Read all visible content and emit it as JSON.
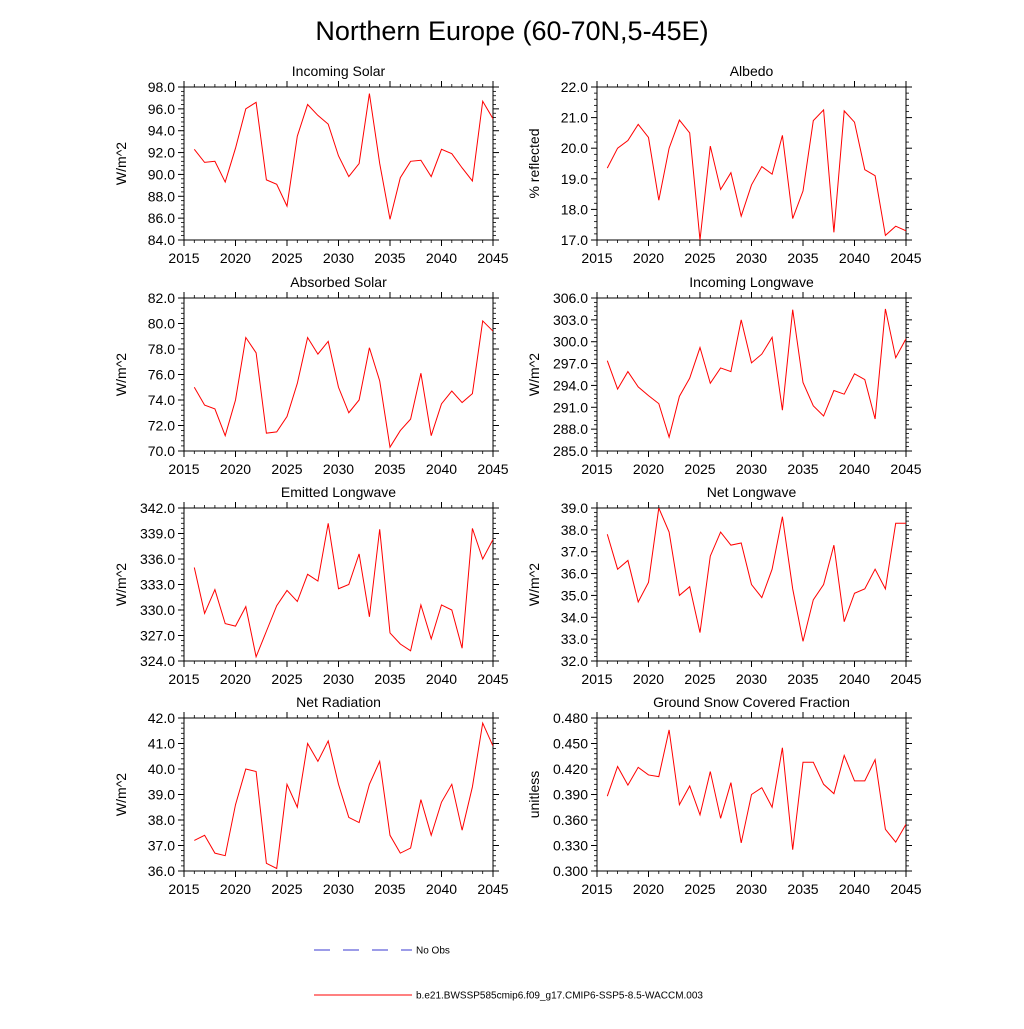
{
  "figure": {
    "title": "Northern Europe (60-70N,5-45E)",
    "legend": {
      "obs_label": "No Obs",
      "model_label": "b.e21.BWSSP585cmip6.f09_g17.CMIP6-SSP5-8.5-WACCM.003",
      "obs_color": "#3a3ad0",
      "model_color": "#ff0000"
    }
  },
  "chart_data": [
    {
      "type": "line",
      "title": "Incoming Solar",
      "xlabel": "",
      "ylabel": "W/m^2",
      "xlim": [
        2015,
        2045
      ],
      "ylim": [
        84.0,
        98.0
      ],
      "xticks": [
        "2015",
        "2020",
        "2025",
        "2030",
        "2035",
        "2040",
        "2045"
      ],
      "yticks": [
        "84.0",
        "86.0",
        "88.0",
        "90.0",
        "92.0",
        "94.0",
        "96.0",
        "98.0"
      ],
      "x": [
        2016,
        2017,
        2018,
        2019,
        2020,
        2021,
        2022,
        2023,
        2024,
        2025,
        2026,
        2027,
        2028,
        2029,
        2030,
        2031,
        2032,
        2033,
        2034,
        2035,
        2036,
        2037,
        2038,
        2039,
        2040,
        2041,
        2042,
        2043,
        2044,
        2045
      ],
      "series": [
        {
          "name": "b.e21.BWSSP585cmip6.f09_g17.CMIP6-SSP5-8.5-WACCM.003",
          "values": [
            92.3,
            91.1,
            91.2,
            89.3,
            92.4,
            96.0,
            96.6,
            89.5,
            89.1,
            87.1,
            93.5,
            96.4,
            95.4,
            94.6,
            91.7,
            89.8,
            91.0,
            97.4,
            91.0,
            85.9,
            89.7,
            91.2,
            91.3,
            89.8,
            92.3,
            91.9,
            90.6,
            89.4,
            96.7,
            95.1
          ]
        }
      ]
    },
    {
      "type": "line",
      "title": "Albedo",
      "xlabel": "",
      "ylabel": "% reflected",
      "xlim": [
        2015,
        2045
      ],
      "ylim": [
        17.0,
        22.0
      ],
      "xticks": [
        "2015",
        "2020",
        "2025",
        "2030",
        "2035",
        "2040",
        "2045"
      ],
      "yticks": [
        "17.0",
        "18.0",
        "19.0",
        "20.0",
        "21.0",
        "22.0"
      ],
      "x": [
        2016,
        2017,
        2018,
        2019,
        2020,
        2021,
        2022,
        2023,
        2024,
        2025,
        2026,
        2027,
        2028,
        2029,
        2030,
        2031,
        2032,
        2033,
        2034,
        2035,
        2036,
        2037,
        2038,
        2039,
        2040,
        2041,
        2042,
        2043,
        2044,
        2045
      ],
      "series": [
        {
          "name": "b.e21.BWSSP585cmip6.f09_g17.CMIP6-SSP5-8.5-WACCM.003",
          "values": [
            19.35,
            20.0,
            20.25,
            20.78,
            20.35,
            18.3,
            20.0,
            20.92,
            20.5,
            17.0,
            20.07,
            18.65,
            19.2,
            17.78,
            18.8,
            19.4,
            19.15,
            20.42,
            17.7,
            18.6,
            20.9,
            21.25,
            17.25,
            21.22,
            20.85,
            19.3,
            19.1,
            17.15,
            17.45,
            17.3
          ]
        }
      ]
    },
    {
      "type": "line",
      "title": "Absorbed Solar",
      "xlabel": "",
      "ylabel": "W/m^2",
      "xlim": [
        2015,
        2045
      ],
      "ylim": [
        70.0,
        82.0
      ],
      "xticks": [
        "2015",
        "2020",
        "2025",
        "2030",
        "2035",
        "2040",
        "2045"
      ],
      "yticks": [
        "70.0",
        "72.0",
        "74.0",
        "76.0",
        "78.0",
        "80.0",
        "82.0"
      ],
      "x": [
        2016,
        2017,
        2018,
        2019,
        2020,
        2021,
        2022,
        2023,
        2024,
        2025,
        2026,
        2027,
        2028,
        2029,
        2030,
        2031,
        2032,
        2033,
        2034,
        2035,
        2036,
        2037,
        2038,
        2039,
        2040,
        2041,
        2042,
        2043,
        2044,
        2045
      ],
      "series": [
        {
          "name": "b.e21.BWSSP585cmip6.f09_g17.CMIP6-SSP5-8.5-WACCM.003",
          "values": [
            75.0,
            73.6,
            73.3,
            71.2,
            74.0,
            78.9,
            77.7,
            71.4,
            71.5,
            72.7,
            75.3,
            78.9,
            77.6,
            78.6,
            75.0,
            73.0,
            74.0,
            78.1,
            75.5,
            70.3,
            71.6,
            72.5,
            76.1,
            71.2,
            73.7,
            74.7,
            73.8,
            74.5,
            80.2,
            79.4
          ]
        }
      ]
    },
    {
      "type": "line",
      "title": "Incoming Longwave",
      "xlabel": "",
      "ylabel": "W/m^2",
      "xlim": [
        2015,
        2045
      ],
      "ylim": [
        285.0,
        306.0
      ],
      "xticks": [
        "2015",
        "2020",
        "2025",
        "2030",
        "2035",
        "2040",
        "2045"
      ],
      "yticks": [
        "285.0",
        "288.0",
        "291.0",
        "294.0",
        "297.0",
        "300.0",
        "303.0",
        "306.0"
      ],
      "x": [
        2016,
        2017,
        2018,
        2019,
        2020,
        2021,
        2022,
        2023,
        2024,
        2025,
        2026,
        2027,
        2028,
        2029,
        2030,
        2031,
        2032,
        2033,
        2034,
        2035,
        2036,
        2037,
        2038,
        2039,
        2040,
        2041,
        2042,
        2043,
        2044,
        2045
      ],
      "series": [
        {
          "name": "b.e21.BWSSP585cmip6.f09_g17.CMIP6-SSP5-8.5-WACCM.003",
          "values": [
            297.4,
            293.5,
            295.9,
            293.8,
            292.6,
            291.5,
            286.9,
            292.5,
            295.0,
            299.2,
            294.3,
            296.4,
            295.9,
            303.0,
            297.1,
            298.3,
            300.6,
            290.6,
            304.4,
            294.4,
            291.2,
            289.8,
            293.3,
            292.8,
            295.6,
            294.8,
            289.4,
            304.5,
            297.8,
            300.4
          ]
        }
      ]
    },
    {
      "type": "line",
      "title": "Emitted Longwave",
      "xlabel": "",
      "ylabel": "W/m^2",
      "xlim": [
        2015,
        2045
      ],
      "ylim": [
        324.0,
        342.0
      ],
      "xticks": [
        "2015",
        "2020",
        "2025",
        "2030",
        "2035",
        "2040",
        "2045"
      ],
      "yticks": [
        "324.0",
        "327.0",
        "330.0",
        "333.0",
        "336.0",
        "339.0",
        "342.0"
      ],
      "x": [
        2016,
        2017,
        2018,
        2019,
        2020,
        2021,
        2022,
        2023,
        2024,
        2025,
        2026,
        2027,
        2028,
        2029,
        2030,
        2031,
        2032,
        2033,
        2034,
        2035,
        2036,
        2037,
        2038,
        2039,
        2040,
        2041,
        2042,
        2043,
        2044,
        2045
      ],
      "series": [
        {
          "name": "b.e21.BWSSP585cmip6.f09_g17.CMIP6-SSP5-8.5-WACCM.003",
          "values": [
            335.0,
            329.6,
            332.4,
            328.4,
            328.1,
            330.4,
            324.5,
            327.5,
            330.5,
            332.3,
            331.0,
            334.2,
            333.4,
            340.2,
            332.5,
            333.0,
            336.6,
            329.2,
            339.5,
            327.3,
            326.0,
            325.2,
            330.6,
            326.6,
            330.6,
            330.0,
            325.5,
            339.6,
            336.0,
            338.3
          ]
        }
      ]
    },
    {
      "type": "line",
      "title": "Net Longwave",
      "xlabel": "",
      "ylabel": "W/m^2",
      "xlim": [
        2015,
        2045
      ],
      "ylim": [
        32.0,
        39.0
      ],
      "xticks": [
        "2015",
        "2020",
        "2025",
        "2030",
        "2035",
        "2040",
        "2045"
      ],
      "yticks": [
        "32.0",
        "33.0",
        "34.0",
        "35.0",
        "36.0",
        "37.0",
        "38.0",
        "39.0"
      ],
      "x": [
        2016,
        2017,
        2018,
        2019,
        2020,
        2021,
        2022,
        2023,
        2024,
        2025,
        2026,
        2027,
        2028,
        2029,
        2030,
        2031,
        2032,
        2033,
        2034,
        2035,
        2036,
        2037,
        2038,
        2039,
        2040,
        2041,
        2042,
        2043,
        2044,
        2045
      ],
      "series": [
        {
          "name": "b.e21.BWSSP585cmip6.f09_g17.CMIP6-SSP5-8.5-WACCM.003",
          "values": [
            37.8,
            36.2,
            36.6,
            34.7,
            35.6,
            39.0,
            37.9,
            35.0,
            35.4,
            33.3,
            36.8,
            37.9,
            37.3,
            37.4,
            35.5,
            34.9,
            36.2,
            38.6,
            35.3,
            32.9,
            34.8,
            35.5,
            37.3,
            33.8,
            35.1,
            35.3,
            36.2,
            35.3,
            38.3,
            38.3
          ]
        }
      ]
    },
    {
      "type": "line",
      "title": "Net Radiation",
      "xlabel": "",
      "ylabel": "W/m^2",
      "xlim": [
        2015,
        2045
      ],
      "ylim": [
        36.0,
        42.0
      ],
      "xticks": [
        "2015",
        "2020",
        "2025",
        "2030",
        "2035",
        "2040",
        "2045"
      ],
      "yticks": [
        "36.0",
        "37.0",
        "38.0",
        "39.0",
        "40.0",
        "41.0",
        "42.0"
      ],
      "x": [
        2016,
        2017,
        2018,
        2019,
        2020,
        2021,
        2022,
        2023,
        2024,
        2025,
        2026,
        2027,
        2028,
        2029,
        2030,
        2031,
        2032,
        2033,
        2034,
        2035,
        2036,
        2037,
        2038,
        2039,
        2040,
        2041,
        2042,
        2043,
        2044,
        2045
      ],
      "series": [
        {
          "name": "b.e21.BWSSP585cmip6.f09_g17.CMIP6-SSP5-8.5-WACCM.003",
          "values": [
            37.2,
            37.4,
            36.7,
            36.6,
            38.6,
            40.0,
            39.9,
            36.3,
            36.1,
            39.4,
            38.5,
            41.0,
            40.3,
            41.1,
            39.4,
            38.1,
            37.9,
            39.4,
            40.3,
            37.4,
            36.7,
            36.9,
            38.8,
            37.4,
            38.7,
            39.4,
            37.6,
            39.3,
            41.8,
            40.9
          ]
        }
      ]
    },
    {
      "type": "line",
      "title": "Ground Snow Covered Fraction",
      "xlabel": "",
      "ylabel": "unitless",
      "xlim": [
        2015,
        2045
      ],
      "ylim": [
        0.3,
        0.48
      ],
      "xticks": [
        "2015",
        "2020",
        "2025",
        "2030",
        "2035",
        "2040",
        "2045"
      ],
      "yticks": [
        "0.300",
        "0.330",
        "0.360",
        "0.390",
        "0.420",
        "0.450",
        "0.480"
      ],
      "x": [
        2016,
        2017,
        2018,
        2019,
        2020,
        2021,
        2022,
        2023,
        2024,
        2025,
        2026,
        2027,
        2028,
        2029,
        2030,
        2031,
        2032,
        2033,
        2034,
        2035,
        2036,
        2037,
        2038,
        2039,
        2040,
        2041,
        2042,
        2043,
        2044,
        2045
      ],
      "series": [
        {
          "name": "b.e21.BWSSP585cmip6.f09_g17.CMIP6-SSP5-8.5-WACCM.003",
          "values": [
            0.388,
            0.423,
            0.401,
            0.422,
            0.413,
            0.411,
            0.466,
            0.378,
            0.4,
            0.366,
            0.417,
            0.362,
            0.404,
            0.333,
            0.39,
            0.398,
            0.375,
            0.445,
            0.325,
            0.428,
            0.428,
            0.402,
            0.391,
            0.436,
            0.406,
            0.406,
            0.431,
            0.349,
            0.334,
            0.355
          ]
        }
      ]
    }
  ]
}
